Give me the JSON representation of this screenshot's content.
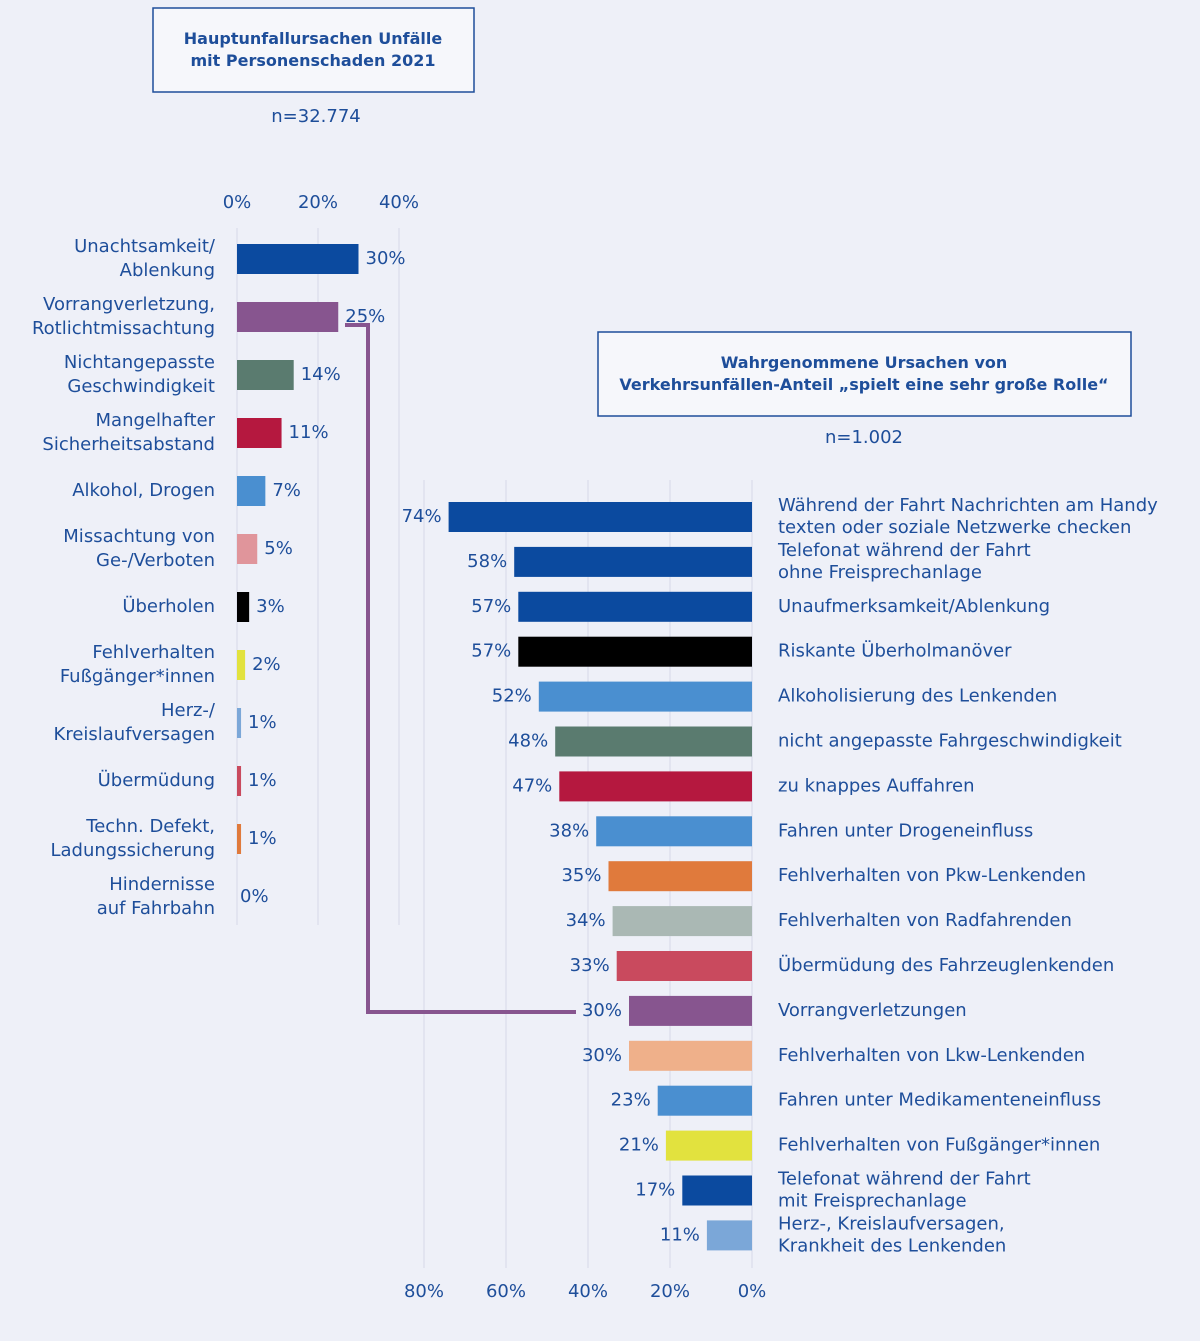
{
  "chart_data": [
    {
      "type": "barh",
      "title": "Hauptunfallursachen Unfälle\nmit Personenschaden 2021",
      "subtitle": "n=32.774",
      "categories": [
        "Unachtsamkeit/\nAblenkung",
        "Vorrangverletzung,\nRotlichtmissachtung",
        "Nichtangepasste\nGeschwindigkeit",
        "Mangelhafter\nSicherheitsabstand",
        "Alkohol, Drogen",
        "Missachtung von\nGe-/Verboten",
        "Überholen",
        "Fehlverhalten\nFußgänger*innen",
        "Herz-/\nKreislaufversagen",
        "Übermüdung",
        "Techn. Defekt,\nLadungssicherung",
        "Hindernisse\nauf Fahrbahn"
      ],
      "values": [
        30,
        25,
        14,
        11,
        7,
        5,
        3,
        2,
        1,
        1,
        1,
        0
      ],
      "value_labels": [
        "30%",
        "25%",
        "14%",
        "11%",
        "7%",
        "5%",
        "3%",
        "2%",
        "1%",
        "1%",
        "1%",
        "0%"
      ],
      "colors": [
        "#0b4a9f",
        "#87558f",
        "#5a7b6f",
        "#b5183f",
        "#4a8fd0",
        "#e0959b",
        "#000000",
        "#e2e23e",
        "#7ba7d8",
        "#c94a5e",
        "#e07a3c",
        "#cccccc"
      ],
      "xlim": [
        0,
        40
      ],
      "xticks": [
        {
          "value": 0,
          "label": "0%"
        },
        {
          "value": 20,
          "label": "20%"
        },
        {
          "value": 40,
          "label": "40%"
        }
      ],
      "grid": true
    },
    {
      "type": "barh",
      "title": "Wahrgenommene Ursachen von\nVerkehrsunfällen-Anteil „spielt eine sehr große Rolle“",
      "subtitle": "n=1.002",
      "categories": [
        "Während der Fahrt Nachrichten am Handy\ntexten oder soziale Netzwerke checken",
        "Telefonat während der Fahrt\nohne Freisprechanlage",
        "Unaufmerksamkeit/Ablenkung",
        "Riskante Überholmanöver",
        "Alkoholisierung des Lenkenden",
        "nicht angepasste Fahrgeschwindigkeit",
        "zu knappes Auffahren",
        "Fahren unter Drogeneinfluss",
        "Fehlverhalten von Pkw-Lenkenden",
        "Fehlverhalten von Radfahrenden",
        "Übermüdung des Fahrzeuglenkenden",
        "Vorrangverletzungen",
        "Fehlverhalten von Lkw-Lenkenden",
        "Fahren unter Medikamenteneinfluss",
        "Fehlverhalten von Fußgänger*innen",
        "Telefonat während der Fahrt\nmit Freisprechanlage",
        "Herz-, Kreislaufversagen,\nKrankheit des Lenkenden"
      ],
      "values": [
        74,
        58,
        57,
        57,
        52,
        48,
        47,
        38,
        35,
        34,
        33,
        30,
        30,
        23,
        21,
        17,
        11
      ],
      "value_labels": [
        "74%",
        "58%",
        "57%",
        "57%",
        "52%",
        "48%",
        "47%",
        "38%",
        "35%",
        "34%",
        "33%",
        "30%",
        "30%",
        "23%",
        "21%",
        "17%",
        "11%"
      ],
      "colors": [
        "#0b4a9f",
        "#0b4a9f",
        "#0b4a9f",
        "#000000",
        "#4a8fd0",
        "#5a7b6f",
        "#b5183f",
        "#4a8fd0",
        "#e07a3c",
        "#aab8b4",
        "#c94a5e",
        "#87558f",
        "#efb08a",
        "#4a8fd0",
        "#e2e23e",
        "#0b4a9f",
        "#7ba7d8"
      ],
      "xlim": [
        0,
        80
      ],
      "reversed": true,
      "xticks": [
        {
          "value": 0,
          "label": "0%"
        },
        {
          "value": 20,
          "label": "20%"
        },
        {
          "value": 40,
          "label": "40%"
        },
        {
          "value": 60,
          "label": "60%"
        },
        {
          "value": 80,
          "label": "80%"
        }
      ],
      "grid": true
    }
  ]
}
